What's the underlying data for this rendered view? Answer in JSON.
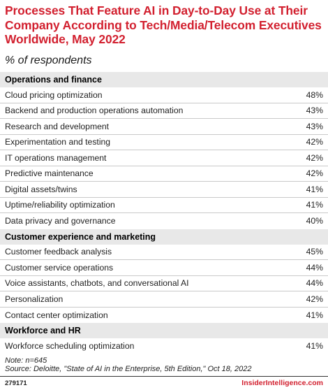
{
  "chart_data": {
    "type": "table",
    "title": "Processes That Feature AI in Day-to-Day Use at Their Company According to Tech/Media/Telecom Executives Worldwide, May 2022",
    "subtitle": "% of respondents",
    "groups": [
      {
        "name": "Operations and finance",
        "rows": [
          {
            "label": "Cloud pricing optimization",
            "value": "48%"
          },
          {
            "label": "Backend and production operations automation",
            "value": "43%"
          },
          {
            "label": "Research and development",
            "value": "43%"
          },
          {
            "label": "Experimentation and testing",
            "value": "42%"
          },
          {
            "label": "IT operations management",
            "value": "42%"
          },
          {
            "label": "Predictive maintenance",
            "value": "42%"
          },
          {
            "label": "Digital assets/twins",
            "value": "41%"
          },
          {
            "label": "Uptime/reliability optimization",
            "value": "41%"
          },
          {
            "label": "Data privacy and governance",
            "value": "40%"
          }
        ]
      },
      {
        "name": "Customer experience and marketing",
        "rows": [
          {
            "label": "Customer feedback analysis",
            "value": "45%"
          },
          {
            "label": "Customer service operations",
            "value": "44%"
          },
          {
            "label": "Voice assistants, chatbots, and conversational AI",
            "value": "44%"
          },
          {
            "label": "Personalization",
            "value": "42%"
          },
          {
            "label": "Contact center optimization",
            "value": "41%"
          }
        ]
      },
      {
        "name": "Workforce and HR",
        "rows": [
          {
            "label": "Workforce scheduling optimization",
            "value": "41%"
          }
        ]
      }
    ],
    "note": "Note: n=645",
    "source": "Source: Deloitte, \"State of AI in the Enterprise, 5th Edition,\" Oct 18, 2022",
    "chart_id": "279171",
    "brand": "InsiderIntelligence.com"
  }
}
